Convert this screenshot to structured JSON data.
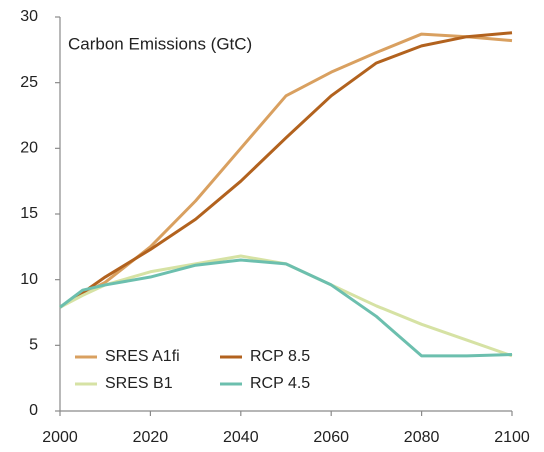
{
  "chart_data": {
    "type": "line",
    "title": "Carbon Emissions (GtC)",
    "x": [
      2000,
      2005,
      2010,
      2020,
      2030,
      2040,
      2050,
      2060,
      2070,
      2080,
      2090,
      2100
    ],
    "series": [
      {
        "name": "SRES A1fi",
        "color": "#d9a060",
        "values": [
          7.9,
          8.9,
          9.8,
          12.5,
          16.0,
          20.0,
          24.0,
          25.8,
          27.3,
          28.7,
          28.5,
          28.2
        ]
      },
      {
        "name": "RCP 8.5",
        "color": "#b2621e",
        "values": [
          7.9,
          9.0,
          10.2,
          12.3,
          14.6,
          17.5,
          20.8,
          24.0,
          26.5,
          27.8,
          28.5,
          28.8
        ]
      },
      {
        "name": "SRES B1",
        "color": "#d6e2a4",
        "values": [
          7.9,
          8.8,
          9.6,
          10.6,
          11.2,
          11.8,
          11.2,
          9.6,
          8.0,
          6.6,
          5.4,
          4.2
        ]
      },
      {
        "name": "RCP 4.5",
        "color": "#6cbfae",
        "values": [
          7.9,
          9.2,
          9.6,
          10.2,
          11.1,
          11.5,
          11.2,
          9.6,
          7.2,
          4.2,
          4.2,
          4.3
        ]
      }
    ],
    "xlim": [
      2000,
      2100
    ],
    "xticks": [
      2000,
      2020,
      2040,
      2060,
      2080,
      2100
    ],
    "ylim": [
      0,
      30
    ],
    "yticks": [
      0,
      5,
      10,
      15,
      20,
      25,
      30
    ],
    "grid": false,
    "legend": "lower left"
  }
}
